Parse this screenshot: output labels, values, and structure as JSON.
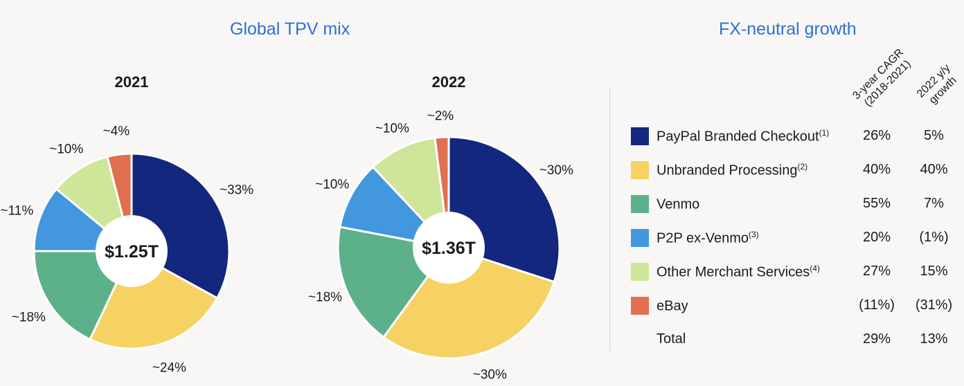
{
  "titles": {
    "left": "Global TPV mix",
    "right": "FX-neutral growth"
  },
  "chart_data": [
    {
      "type": "pie",
      "title": "2021",
      "center_label": "$1.25T",
      "categories": [
        "PayPal Branded Checkout",
        "Unbranded Processing",
        "Venmo",
        "P2P ex-Venmo",
        "Other Merchant Services",
        "eBay"
      ],
      "values": [
        33,
        24,
        18,
        11,
        10,
        4
      ],
      "labels": [
        "~33%",
        "~24%",
        "~18%",
        "~11%",
        "~10%",
        "~4%"
      ]
    },
    {
      "type": "pie",
      "title": "2022",
      "center_label": "$1.36T",
      "categories": [
        "PayPal Branded Checkout",
        "Unbranded Processing",
        "Venmo",
        "P2P ex-Venmo",
        "Other Merchant Services",
        "eBay"
      ],
      "values": [
        30,
        30,
        18,
        10,
        10,
        2
      ],
      "labels": [
        "~30%",
        "~30%",
        "~18%",
        "~10%",
        "~10%",
        "~2%"
      ]
    }
  ],
  "colors": [
    "#13277f",
    "#f6d262",
    "#5cb18a",
    "#4297de",
    "#cfe69a",
    "#e0704f"
  ],
  "table": {
    "col1_lines": [
      "3-year CAGR",
      "(2018-2021)"
    ],
    "col2_lines": [
      "2022 y/y",
      "growth"
    ],
    "rows": [
      {
        "label": "PayPal Branded Checkout",
        "note": "(1)",
        "cagr": "26%",
        "yoy": "5%"
      },
      {
        "label": "Unbranded Processing",
        "note": "(2)",
        "cagr": "40%",
        "yoy": "40%"
      },
      {
        "label": "Venmo",
        "note": "",
        "cagr": "55%",
        "yoy": "7%"
      },
      {
        "label": "P2P ex-Venmo",
        "note": "(3)",
        "cagr": "20%",
        "yoy": "(1%)"
      },
      {
        "label": "Other Merchant Services",
        "note": "(4)",
        "cagr": "27%",
        "yoy": "15%"
      },
      {
        "label": "eBay",
        "note": "",
        "cagr": "(11%)",
        "yoy": "(31%)"
      }
    ],
    "total": {
      "label": "Total",
      "cagr": "29%",
      "yoy": "13%"
    }
  }
}
